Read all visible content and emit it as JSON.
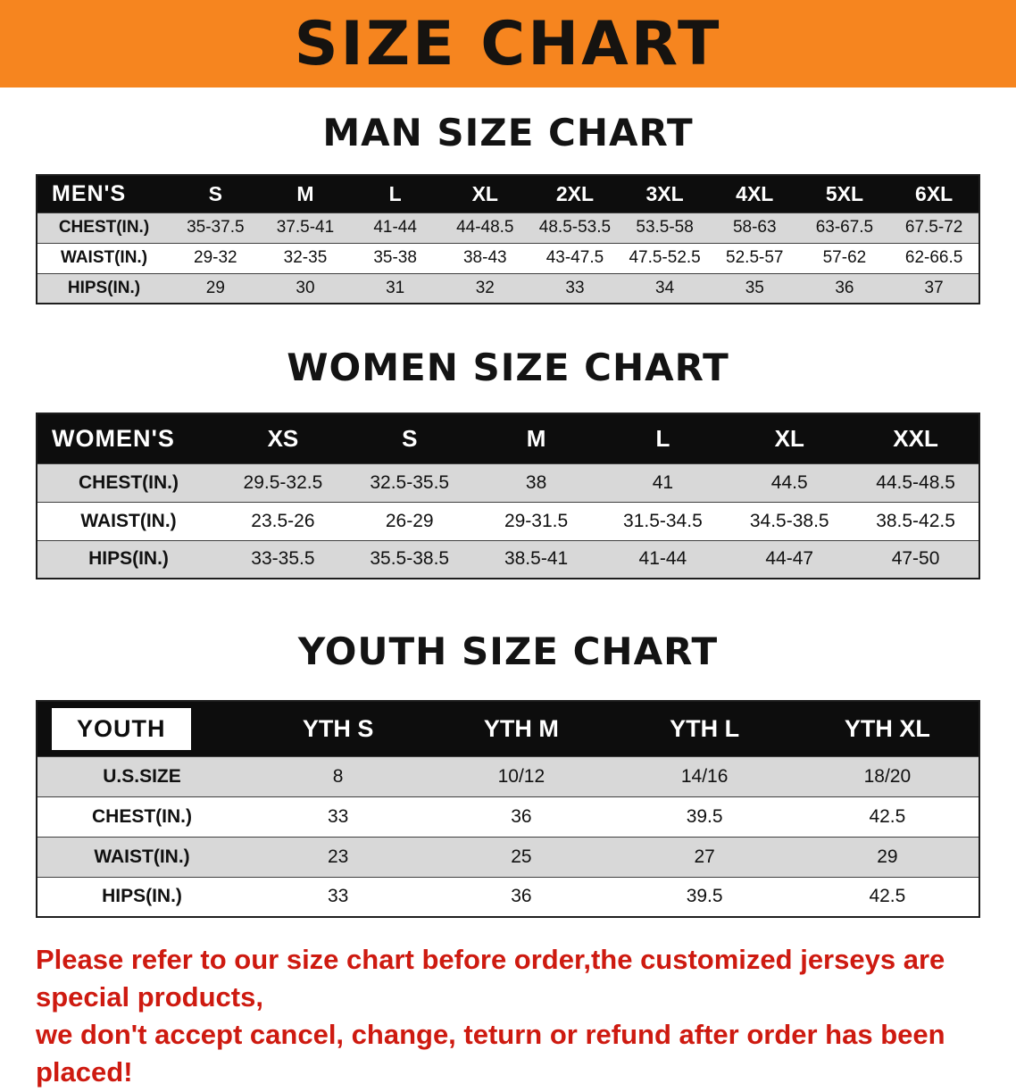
{
  "banner": {
    "title": "SIZE CHART",
    "bg_color": "#f6851f"
  },
  "colors": {
    "header_bar": "#0d0d0d",
    "row_shade": "#d8d8d8",
    "notice_red": "#ce1a10"
  },
  "sections": [
    {
      "heading": "MAN SIZE CHART",
      "table": {
        "corner": "MEN'S",
        "columns": [
          "S",
          "M",
          "L",
          "XL",
          "2XL",
          "3XL",
          "4XL",
          "5XL",
          "6XL"
        ],
        "rows": [
          {
            "label": "CHEST(IN.)",
            "values": [
              "35-37.5",
              "37.5-41",
              "41-44",
              "44-48.5",
              "48.5-53.5",
              "53.5-58",
              "58-63",
              "63-67.5",
              "67.5-72"
            ]
          },
          {
            "label": "WAIST(IN.)",
            "values": [
              "29-32",
              "32-35",
              "35-38",
              "38-43",
              "43-47.5",
              "47.5-52.5",
              "52.5-57",
              "57-62",
              "62-66.5"
            ]
          },
          {
            "label": "HIPS(IN.)",
            "values": [
              "29",
              "30",
              "31",
              "32",
              "33",
              "34",
              "35",
              "36",
              "37"
            ]
          }
        ]
      }
    },
    {
      "heading": "WOMEN SIZE CHART",
      "table": {
        "corner": "WOMEN'S",
        "columns": [
          "XS",
          "S",
          "M",
          "L",
          "XL",
          "XXL"
        ],
        "rows": [
          {
            "label": "CHEST(IN.)",
            "values": [
              "29.5-32.5",
              "32.5-35.5",
              "38",
              "41",
              "44.5",
              "44.5-48.5"
            ]
          },
          {
            "label": "WAIST(IN.)",
            "values": [
              "23.5-26",
              "26-29",
              "29-31.5",
              "31.5-34.5",
              "34.5-38.5",
              "38.5-42.5"
            ]
          },
          {
            "label": "HIPS(IN.)",
            "values": [
              "33-35.5",
              "35.5-38.5",
              "38.5-41",
              "41-44",
              "44-47",
              "47-50"
            ]
          }
        ]
      }
    },
    {
      "heading": "YOUTH SIZE CHART",
      "table": {
        "corner": "YOUTH",
        "columns": [
          "YTH S",
          "YTH M",
          "YTH L",
          "YTH XL"
        ],
        "rows": [
          {
            "label": "U.S.SIZE",
            "values": [
              "8",
              "10/12",
              "14/16",
              "18/20"
            ]
          },
          {
            "label": "CHEST(IN.)",
            "values": [
              "33",
              "36",
              "39.5",
              "42.5"
            ]
          },
          {
            "label": "WAIST(IN.)",
            "values": [
              "23",
              "25",
              "27",
              "29"
            ]
          },
          {
            "label": "HIPS(IN.)",
            "values": [
              "33",
              "36",
              "39.5",
              "42.5"
            ]
          }
        ]
      }
    }
  ],
  "footer": {
    "line1": "Please refer to our size chart before order,the customized jerseys are special products,",
    "line2": "we don't accept cancel, change, teturn or refund after order has been placed!"
  }
}
